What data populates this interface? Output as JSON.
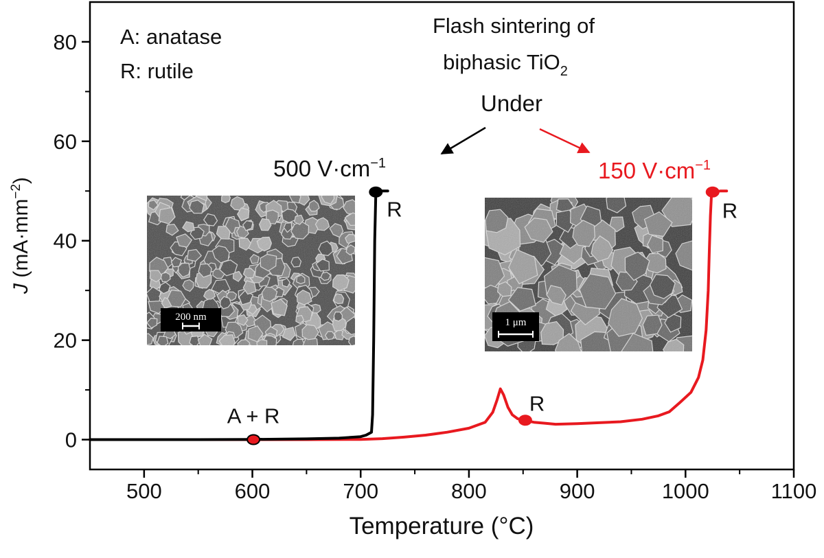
{
  "chart_data": {
    "type": "line",
    "title_lines": [
      "Flash sintering of",
      "biphasic TiO",
      "2",
      "Under"
    ],
    "xlabel": "Temperature (°C)",
    "ylabel_italic": "J",
    "ylabel_rest": " (mA·mm",
    "ylabel_sup": "−2",
    "ylabel_close": ")",
    "xlim": [
      450,
      1100
    ],
    "ylim": [
      -6,
      88
    ],
    "xticks": [
      500,
      600,
      700,
      800,
      900,
      1000,
      1100
    ],
    "yticks": [
      0,
      20,
      40,
      60,
      80
    ],
    "grid": false,
    "legend_text": [
      "A: anatase",
      "R: rutile"
    ],
    "series": [
      {
        "name": "500 V·cm",
        "name_sup": "−1",
        "color": "#000000",
        "x": [
          450,
          550,
          600,
          650,
          680,
          700,
          705,
          710,
          711,
          712,
          713,
          714,
          718,
          722,
          725
        ],
        "y": [
          0,
          0,
          0.05,
          0.15,
          0.3,
          0.6,
          0.9,
          1.5,
          5,
          20,
          40,
          49.5,
          50,
          50,
          50
        ]
      },
      {
        "name": "150 V·cm",
        "name_sup": "−1",
        "color": "#e8191f",
        "x": [
          450,
          650,
          700,
          720,
          740,
          760,
          780,
          800,
          815,
          822,
          826,
          829,
          832,
          836,
          840,
          845,
          850,
          855,
          860,
          870,
          880,
          900,
          920,
          940,
          960,
          975,
          985,
          995,
          1005,
          1012,
          1016,
          1019,
          1021,
          1022,
          1023,
          1024,
          1026,
          1032,
          1038
        ],
        "y": [
          0,
          0,
          0.05,
          0.2,
          0.5,
          0.9,
          1.5,
          2.3,
          3.5,
          5.5,
          8,
          10.2,
          9,
          6.5,
          5,
          4.2,
          3.9,
          3.7,
          3.5,
          3.3,
          3.1,
          3.2,
          3.4,
          3.6,
          4.1,
          4.8,
          5.6,
          7.5,
          9.5,
          12.5,
          16,
          22,
          30,
          38,
          45,
          49.5,
          49.8,
          50,
          50
        ]
      }
    ],
    "markers": [
      {
        "x": 601,
        "y": 0,
        "color": "#e8191f",
        "stroke": "#000000",
        "label": "A + R"
      },
      {
        "x": 714,
        "y": 49.8,
        "color": "#000000",
        "stroke": "#000000",
        "label": "R"
      },
      {
        "x": 852,
        "y": 3.9,
        "color": "#e8191f",
        "stroke": "#e8191f",
        "label": "R"
      },
      {
        "x": 1025,
        "y": 49.8,
        "color": "#e8191f",
        "stroke": "#e8191f",
        "label": "R"
      }
    ],
    "insets": [
      {
        "scale_label": "200 nm"
      },
      {
        "scale_label": "1 μm"
      }
    ]
  }
}
